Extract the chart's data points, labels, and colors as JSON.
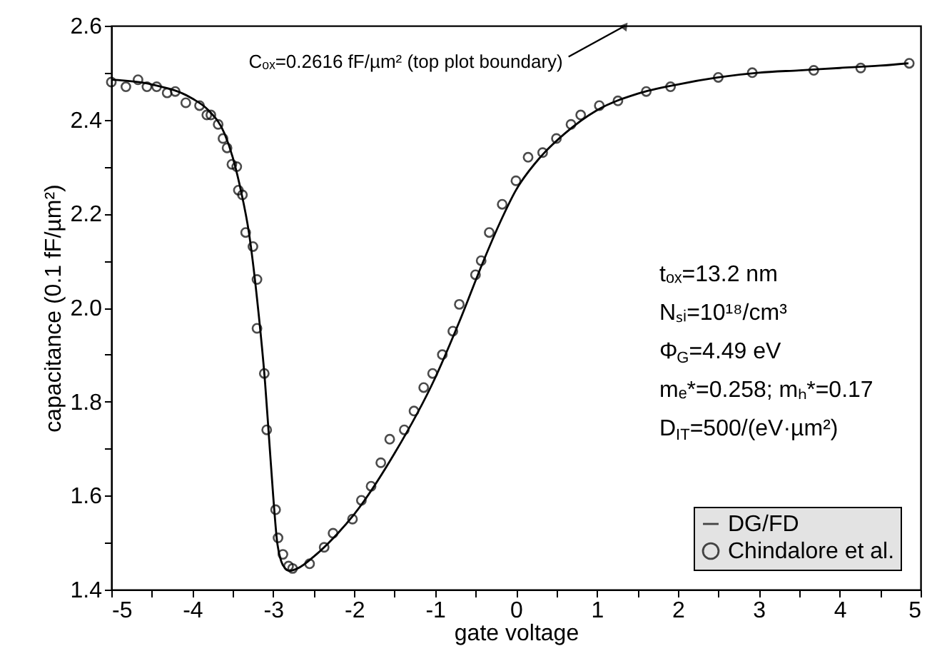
{
  "chart_data": {
    "type": "line",
    "xlabel": "gate voltage",
    "ylabel": "capacitance (0.1 fF/µm²)",
    "xlim": [
      -5,
      5
    ],
    "ylim": [
      1.4,
      2.6
    ],
    "xticks": [
      -5,
      {
        "value": -4.5,
        "label": null
      },
      -4,
      {
        "value": -3.5,
        "label": null
      },
      -3,
      {
        "value": -2.5,
        "label": null
      },
      -2,
      {
        "value": -1.5,
        "label": null
      },
      -1,
      {
        "value": -0.5,
        "label": null
      },
      0,
      {
        "value": 0.5,
        "label": null
      },
      1,
      {
        "value": 1.5,
        "label": null
      },
      2,
      {
        "value": 2.5,
        "label": null
      },
      3,
      {
        "value": 3.5,
        "label": null
      },
      4,
      {
        "value": 4.5,
        "label": null
      },
      5
    ],
    "yticks": [
      1.4,
      {
        "value": 1.5,
        "label": null
      },
      1.6,
      {
        "value": 1.7,
        "label": null
      },
      1.8,
      {
        "value": 1.9,
        "label": null
      },
      {
        "value": 2,
        "label": "2.0"
      },
      {
        "value": 2.1,
        "label": null
      },
      2.2,
      {
        "value": 2.3,
        "label": null
      },
      2.4,
      {
        "value": 2.5,
        "label": null
      },
      2.6
    ],
    "grid": false,
    "legend": "bottom right",
    "annotations": [
      {
        "text": "Cₒₓ=0.2616 fF/µm² (top plot boundary)",
        "x": 1.35,
        "y": 2.6
      },
      "tₒₓ=13.2 nm",
      "Nₛᵢ=10¹⁸/cm³",
      "Φ$_{G}$=4.49 eV",
      "mₑ*=0.258;  mₕ*=0.17",
      "D$_{IT}$=500/(eV·µm²)"
    ],
    "series": [
      {
        "name": "DG/FD",
        "color": "#000000",
        "line_style": "solid",
        "x": [
          -5,
          -4.5,
          -4,
          -3.8,
          -3.6,
          -3.5,
          -3.4,
          -3.3,
          -3.2,
          -3.1,
          -3.05,
          -3.0,
          -2.95,
          -2.9,
          -2.85,
          -2.8,
          -2.7,
          -2.5,
          -2.2,
          -2.0,
          -1.5,
          -1.0,
          -0.7,
          -0.4,
          -0.2,
          0,
          0.3,
          0.6,
          1.0,
          1.5,
          2.0,
          2.5,
          3.0,
          3.5,
          4.0,
          4.5,
          4.85
        ],
        "values": [
          2.485,
          2.475,
          2.445,
          2.42,
          2.37,
          2.32,
          2.25,
          2.16,
          2.02,
          1.84,
          1.72,
          1.6,
          1.5,
          1.46,
          1.445,
          1.44,
          1.445,
          1.47,
          1.52,
          1.56,
          1.69,
          1.85,
          1.97,
          2.1,
          2.18,
          2.25,
          2.32,
          2.37,
          2.42,
          2.455,
          2.475,
          2.49,
          2.5,
          2.505,
          2.51,
          2.515,
          2.52
        ]
      },
      {
        "name": "Chindalore et al.",
        "type": "scatter",
        "color": "#000000",
        "marker": "circle",
        "x": [
          -5.0,
          -4.82,
          -4.67,
          -4.56,
          -4.44,
          -4.31,
          -4.21,
          -4.08,
          -3.91,
          -3.82,
          -3.77,
          -3.68,
          -3.62,
          -3.57,
          -3.51,
          -3.45,
          -3.43,
          -3.38,
          -3.34,
          -3.25,
          -3.2,
          -3.2,
          -3.11,
          -3.08,
          -2.97,
          -2.94,
          -2.88,
          -2.81,
          -2.76,
          -2.55,
          -2.37,
          -2.26,
          -2.02,
          -1.91,
          -1.79,
          -1.67,
          -1.56,
          -1.38,
          -1.26,
          -1.14,
          -1.03,
          -0.91,
          -0.78,
          -0.7,
          -0.5,
          -0.43,
          -0.33,
          -0.17,
          0.0,
          0.15,
          0.33,
          0.5,
          0.68,
          0.8,
          1.03,
          1.26,
          1.61,
          1.91,
          2.5,
          2.92,
          3.68,
          4.26,
          4.86
        ],
        "values": [
          2.48,
          2.47,
          2.485,
          2.47,
          2.47,
          2.457,
          2.46,
          2.436,
          2.43,
          2.41,
          2.41,
          2.39,
          2.36,
          2.34,
          2.305,
          2.3,
          2.25,
          2.24,
          2.16,
          2.13,
          2.06,
          1.956,
          1.86,
          1.74,
          1.57,
          1.51,
          1.475,
          1.45,
          1.445,
          1.455,
          1.49,
          1.52,
          1.55,
          1.59,
          1.62,
          1.67,
          1.72,
          1.74,
          1.78,
          1.83,
          1.86,
          1.9,
          1.95,
          2.007,
          2.07,
          2.1,
          2.16,
          2.22,
          2.27,
          2.32,
          2.33,
          2.36,
          2.39,
          2.41,
          2.43,
          2.44,
          2.46,
          2.47,
          2.49,
          2.5,
          2.505,
          2.51,
          2.52
        ]
      }
    ]
  }
}
